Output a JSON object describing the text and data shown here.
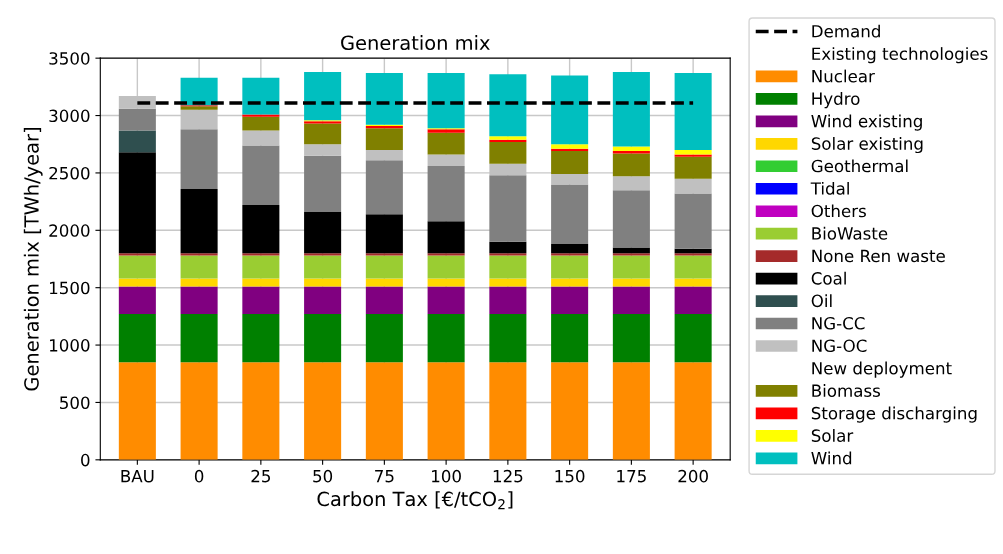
{
  "chart_data": {
    "type": "bar",
    "stacked": true,
    "title": "Generation mix",
    "xlabel": "Carbon Tax [€/tCO$_{2}$]",
    "ylabel": "Generation mix [TWh/year]",
    "categories": [
      "BAU",
      "0",
      "25",
      "50",
      "75",
      "100",
      "125",
      "150",
      "175",
      "200"
    ],
    "ylim": [
      0,
      3500
    ],
    "yticks": [
      0,
      500,
      1000,
      1500,
      2000,
      2500,
      3000,
      3500
    ],
    "grid": true,
    "legend": "right",
    "series": [
      {
        "name": "Demand",
        "type": "line",
        "line_style": "dashed",
        "color": "#000000",
        "values": [
          3110,
          3110,
          3110,
          3110,
          3110,
          3110,
          3110,
          3110,
          3110,
          3110
        ]
      },
      {
        "name": "Existing technologies",
        "values": [
          null,
          null,
          null,
          null,
          null,
          null,
          null,
          null,
          null,
          null
        ]
      },
      {
        "name": "Nuclear",
        "color": "#ff8c00",
        "values": [
          850,
          850,
          850,
          850,
          850,
          850,
          850,
          850,
          850,
          850
        ]
      },
      {
        "name": "Hydro",
        "color": "#008000",
        "values": [
          420,
          420,
          420,
          420,
          420,
          420,
          420,
          420,
          420,
          420
        ]
      },
      {
        "name": "Wind existing",
        "color": "#800080",
        "values": [
          240,
          240,
          240,
          240,
          240,
          240,
          240,
          240,
          240,
          240
        ]
      },
      {
        "name": "Solar existing",
        "color": "#ffd700",
        "values": [
          70,
          70,
          70,
          70,
          70,
          70,
          70,
          70,
          70,
          70
        ]
      },
      {
        "name": "Geothermal",
        "color": "#32cd32",
        "values": [
          0,
          0,
          0,
          0,
          0,
          0,
          0,
          0,
          0,
          0
        ]
      },
      {
        "name": "Tidal",
        "color": "#0000ff",
        "values": [
          0,
          0,
          0,
          0,
          0,
          0,
          0,
          0,
          0,
          0
        ]
      },
      {
        "name": "Others",
        "color": "#c000c0",
        "values": [
          0,
          0,
          0,
          0,
          0,
          0,
          0,
          0,
          0,
          0
        ]
      },
      {
        "name": "BioWaste",
        "color": "#9acd32",
        "values": [
          200,
          200,
          200,
          200,
          200,
          200,
          200,
          200,
          200,
          200
        ]
      },
      {
        "name": "None Ren waste",
        "color": "#a52a2a",
        "values": [
          20,
          20,
          20,
          20,
          20,
          20,
          20,
          20,
          20,
          20
        ]
      },
      {
        "name": "Coal",
        "color": "#000000",
        "values": [
          880,
          560,
          420,
          360,
          340,
          280,
          100,
          80,
          50,
          40
        ]
      },
      {
        "name": "Oil",
        "color": "#2f4f4f",
        "values": [
          190,
          0,
          0,
          0,
          0,
          0,
          0,
          0,
          0,
          0
        ]
      },
      {
        "name": "NG-CC",
        "color": "#808080",
        "values": [
          190,
          520,
          520,
          490,
          470,
          480,
          580,
          520,
          500,
          480
        ]
      },
      {
        "name": "NG-OC",
        "color": "#c0c0c0",
        "values": [
          110,
          170,
          130,
          100,
          90,
          100,
          100,
          90,
          120,
          130
        ]
      },
      {
        "name": "New deployment",
        "values": [
          null,
          null,
          null,
          null,
          null,
          null,
          null,
          null,
          null,
          null
        ]
      },
      {
        "name": "Biomass",
        "color": "#808000",
        "values": [
          0,
          30,
          120,
          180,
          190,
          190,
          190,
          200,
          200,
          190
        ]
      },
      {
        "name": "Storage discharging",
        "color": "#ff0000",
        "values": [
          0,
          10,
          20,
          20,
          20,
          30,
          20,
          20,
          20,
          20
        ]
      },
      {
        "name": "Solar",
        "color": "#ffff00",
        "values": [
          0,
          0,
          0,
          10,
          10,
          10,
          30,
          40,
          40,
          40
        ]
      },
      {
        "name": "Wind",
        "color": "#00bfbf",
        "values": [
          0,
          240,
          320,
          420,
          450,
          480,
          540,
          600,
          650,
          670
        ]
      }
    ]
  }
}
